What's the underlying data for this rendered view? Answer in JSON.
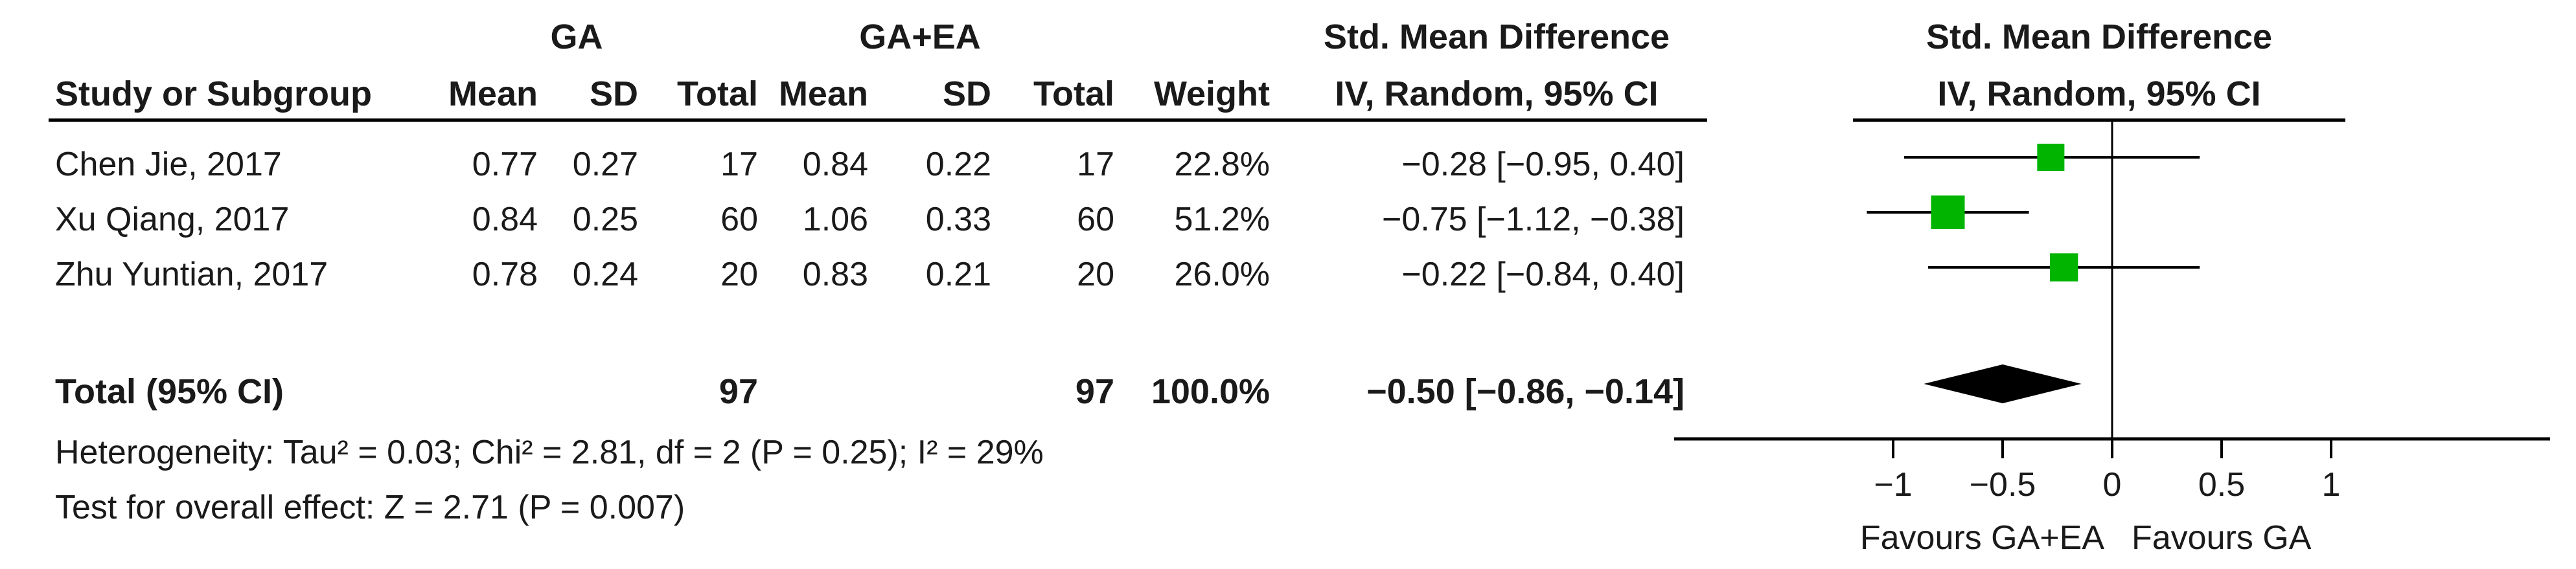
{
  "header": {
    "group1": "GA",
    "group2": "GA+EA",
    "effect_col_title": "Std. Mean Difference",
    "effect_col_method": "IV, Random, 95% CI",
    "plot_title": "Std. Mean Difference",
    "plot_method": "IV, Random, 95% CI",
    "study_col": "Study or Subgroup",
    "mean": "Mean",
    "sd": "SD",
    "total": "Total",
    "weight": "Weight"
  },
  "studies": [
    {
      "name": "Chen Jie, 2017",
      "mean1": "0.77",
      "sd1": "0.27",
      "total1": "17",
      "mean2": "0.84",
      "sd2": "0.22",
      "total2": "17",
      "weight": "22.8%",
      "ci_text": "−0.28 [−0.95, 0.40]"
    },
    {
      "name": "Xu Qiang, 2017",
      "mean1": "0.84",
      "sd1": "0.25",
      "total1": "60",
      "mean2": "1.06",
      "sd2": "0.33",
      "total2": "60",
      "weight": "51.2%",
      "ci_text": "−0.75 [−1.12, −0.38]"
    },
    {
      "name": "Zhu Yuntian, 2017",
      "mean1": "0.78",
      "sd1": "0.24",
      "total1": "20",
      "mean2": "0.83",
      "sd2": "0.21",
      "total2": "20",
      "weight": "26.0%",
      "ci_text": "−0.22 [−0.84, 0.40]"
    }
  ],
  "total": {
    "label": "Total (95% CI)",
    "total1": "97",
    "total2": "97",
    "weight": "100.0%",
    "ci_text": "−0.50 [−0.86, −0.14]"
  },
  "footer": {
    "heterogeneity": "Heterogeneity: Tau² = 0.03; Chi² = 2.81, df = 2 (P = 0.25); I² = 29%",
    "overall": "Test for overall effect: Z = 2.71 (P = 0.007)"
  },
  "chart_data": {
    "type": "forest",
    "x_axis": {
      "ticks": [
        -1,
        -0.5,
        0,
        0.5,
        1
      ],
      "tick_labels": [
        "−1",
        "−0.5",
        "0",
        "0.5",
        "1"
      ],
      "range": [
        -2,
        2
      ]
    },
    "favours_left": "Favours GA+EA",
    "favours_right": "Favours GA",
    "square_color": "#00b400",
    "diamond_color": "#000000",
    "points": [
      {
        "study": "Chen Jie, 2017",
        "estimate": -0.28,
        "ci_low": -0.95,
        "ci_high": 0.4,
        "weight": 22.8
      },
      {
        "study": "Xu Qiang, 2017",
        "estimate": -0.75,
        "ci_low": -1.12,
        "ci_high": -0.38,
        "weight": 51.2
      },
      {
        "study": "Zhu Yuntian, 2017",
        "estimate": -0.22,
        "ci_low": -0.84,
        "ci_high": 0.4,
        "weight": 26.0
      }
    ],
    "pooled": {
      "estimate": -0.5,
      "ci_low": -0.86,
      "ci_high": -0.14
    }
  }
}
